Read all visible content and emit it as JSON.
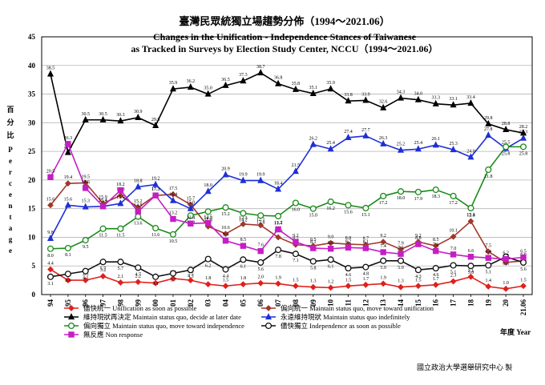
{
  "chart_data": {
    "type": "line",
    "title_zh": "臺灣民眾統獨立場趨勢分佈（1994～2021.06）",
    "title_en_1": "Changes in the Unification - Independence Stances of Taiwanese",
    "title_en_2": "as Tracked in Surveys by Election Study Center, NCCU（1994～2021.06）",
    "ylabel_zh": [
      "百",
      "分",
      "比"
    ],
    "ylabel_en": [
      "P",
      "e",
      "r",
      "c",
      "e",
      "n",
      "t",
      "a",
      "g",
      "e"
    ],
    "xlabel": "年度 Year",
    "credit": "國立政治大學選舉研究中心 製",
    "ylim": [
      0,
      45
    ],
    "yticks": [
      "0",
      "5",
      "10",
      "15",
      "20",
      "25",
      "30",
      "35",
      "40",
      "45"
    ],
    "x_labels": [
      "94",
      "95",
      "96",
      "97",
      "98",
      "99",
      "00",
      "01",
      "02",
      "03",
      "04",
      "05",
      "06",
      "07",
      "08",
      "09",
      "10",
      "11",
      "12",
      "13",
      "14",
      "15",
      "16",
      "17",
      "18",
      "19",
      "20",
      "21.06"
    ],
    "x_positions": [
      1994,
      1995,
      1996,
      1997,
      1998,
      1999,
      2000,
      2001,
      2002,
      2003,
      2004,
      2005,
      2006,
      2007,
      2008,
      2009,
      2010,
      2011,
      2012,
      2013,
      2014,
      2015,
      2016,
      2017,
      2018,
      2019,
      2020,
      2021
    ],
    "legend_position": "bottom",
    "grid": true,
    "series": [
      {
        "name": "儘快統一 Unification as soon as possible",
        "color": "#e0201b",
        "marker": "diamond",
        "values": [
          4.4,
          2.5,
          2.5,
          3.2,
          2.1,
          2.2,
          2.0,
          2.8,
          2.5,
          1.8,
          1.5,
          1.8,
          2.0,
          1.9,
          1.5,
          1.3,
          1.2,
          1.5,
          1.7,
          1.9,
          1.3,
          1.5,
          1.7,
          2.3,
          3.1,
          1.4,
          1.0,
          1.5
        ],
        "labels": [
          "4.4",
          "2.5",
          "2.5",
          "3.2",
          "2.1",
          "2.2",
          "2.0",
          "2.8",
          "2.5",
          "1.8",
          "1.5",
          "1.8",
          "2.0",
          "1.9",
          "1.5",
          "1.3",
          "1.2",
          "1.5",
          "1.7",
          "1.9",
          "1.3",
          "1.5",
          "1.7",
          "2.3",
          "3.1",
          "1.4",
          "1.0",
          "1.5"
        ]
      },
      {
        "name": "偏向統一 Maintain status quo, move toward unification",
        "color": "#a0382c",
        "marker": "diamond",
        "values": [
          15.6,
          19.4,
          19.5,
          15.9,
          17.3,
          15.2,
          17.3,
          17.5,
          15.7,
          11.9,
          10.6,
          12.3,
          12.1,
          10.0,
          8.7,
          8.5,
          9.0,
          8.8,
          8.7,
          9.2,
          7.9,
          9.2,
          8.5,
          10.1,
          12.8,
          7.5,
          5.6,
          5.9
        ],
        "labels": [
          "15.6",
          "19.4",
          "19.5",
          "15.9",
          "17.3",
          "15.2",
          "17.3",
          "17.5",
          "15.7",
          "11.9",
          "10.6",
          "12.3",
          "12.1",
          "10.0",
          "8.7",
          "8.5",
          "9.0",
          "8.8",
          "8.7",
          "9.2",
          "7.9",
          "9.2",
          "8.5",
          "10.1",
          "12.8",
          "7.5",
          "5.6",
          "5.9"
        ]
      },
      {
        "name": "維持現狀再決定 Maintain status quo, decide at later date",
        "color": "#000000",
        "marker": "triangle",
        "values": [
          38.5,
          24.8,
          30.5,
          30.5,
          30.3,
          30.9,
          29.5,
          35.9,
          36.2,
          35.0,
          36.5,
          37.3,
          38.7,
          36.8,
          35.8,
          35.1,
          35.9,
          33.8,
          33.9,
          32.6,
          34.3,
          34.0,
          33.3,
          33.1,
          33.4,
          29.8,
          28.8,
          28.2
        ],
        "labels": [
          "38.5",
          "24.8",
          "30.5",
          "30.5",
          "30.3",
          "30.9",
          "29.5",
          "35.9",
          "36.2",
          "35.0",
          "36.5",
          "37.3",
          "38.7",
          "36.8",
          "35.8",
          "35.1",
          "35.9",
          "33.8",
          "33.9",
          "32.6",
          "34.3",
          "34.0",
          "33.3",
          "33.1",
          "33.4",
          "29.8",
          "28.8",
          "28.2"
        ]
      },
      {
        "name": "永遠維持現狀 Maintain status quo indefinitely",
        "color": "#1f2fd6",
        "marker": "triangle",
        "values": [
          9.8,
          15.6,
          15.3,
          15.4,
          15.9,
          18.8,
          19.2,
          16.4,
          15.0,
          18.0,
          20.9,
          19.9,
          19.9,
          18.4,
          21.5,
          26.2,
          25.4,
          27.4,
          27.7,
          26.3,
          25.2,
          25.4,
          26.1,
          25.3,
          24.0,
          27.8,
          25.5,
          27.3
        ],
        "labels": [
          "9.8",
          "15.6",
          "15.3",
          "15.4",
          "15.9",
          "18.8",
          "19.2",
          "16.4",
          "15.0",
          "18.0",
          "20.9",
          "19.9",
          "19.9",
          "18.4",
          "21.5",
          "26.2",
          "25.4",
          "27.4",
          "27.7",
          "26.3",
          "25.2",
          "25.4",
          "26.1",
          "25.3",
          "24.0",
          "27.8",
          "25.5",
          "27.3"
        ]
      },
      {
        "name": "偏向獨立 Maintain status quo, move toward independence",
        "color": "#1a8a1a",
        "marker": "circle",
        "values": [
          8.0,
          8.1,
          9.5,
          11.5,
          11.5,
          13.6,
          11.6,
          10.5,
          13.8,
          14.5,
          15.2,
          14.2,
          13.8,
          13.7,
          16.0,
          15.0,
          16.2,
          15.6,
          15.1,
          17.2,
          18.0,
          17.9,
          18.3,
          17.2,
          15.1,
          21.8,
          25.8,
          25.8
        ],
        "labels": [
          "8.0",
          "8.1",
          "9.5",
          "11.5",
          "11.5",
          "13.6",
          "11.6",
          "10.5",
          "13.8",
          "14.5",
          "15.2",
          "14.2",
          "13.8",
          "13.7",
          "16.0",
          "15.0",
          "16.2",
          "15.6",
          "15.1",
          "17.2",
          "18.0",
          "17.9",
          "18.3",
          "17.2",
          "15.1",
          "21.8",
          "25.8",
          "25.8"
        ]
      },
      {
        "name": "儘快獨立 Independence as soon as possible",
        "color": "#111111",
        "marker": "circle",
        "values": [
          3.1,
          3.6,
          4.1,
          5.7,
          5.7,
          4.7,
          3.1,
          3.7,
          4.3,
          6.2,
          4.4,
          6.1,
          5.6,
          7.8,
          7.1,
          5.8,
          6.1,
          4.6,
          4.8,
          5.9,
          5.9,
          4.3,
          4.6,
          5.1,
          5.0,
          5.1,
          6.6,
          5.6
        ],
        "labels": [
          "3.1",
          "3.6",
          "4.1",
          "5.7",
          "5.7",
          "4.7",
          "3.1",
          "3.7",
          "4.3",
          "6.2",
          "4.4",
          "6.1",
          "5.6",
          "7.8",
          "7.1",
          "5.8",
          "6.1",
          "4.6",
          "4.8",
          "5.9",
          "5.9",
          "4.3",
          "4.6",
          "5.1",
          "5.0",
          "5.1",
          "6.6",
          "5.6"
        ]
      },
      {
        "name": "無反應 Non response",
        "color": "#c51ec5",
        "marker": "square",
        "values": [
          20.5,
          26.3,
          18.6,
          15.4,
          18.2,
          14.5,
          17.3,
          13.2,
          12.4,
          12.5,
          9.4,
          8.5,
          7.6,
          11.4,
          9.2,
          8.1,
          8.0,
          8.2,
          8.1,
          7.4,
          7.1,
          8.8,
          7.6,
          7.0,
          6.6,
          6.4,
          6.2,
          6.5
        ],
        "labels": [
          "20.5",
          "26.3",
          "18.6",
          "15.4",
          "18.2",
          "14.5",
          "17.3",
          "13.2",
          "12.4",
          "12.5",
          "9.4",
          "8.5",
          "7.6",
          "11.4",
          "9.2",
          "8.1",
          "8.0",
          "8.2",
          "8.1",
          "7.4",
          "7.1",
          "8.8",
          "7.6",
          "7.0",
          "6.6",
          "6.4",
          "6.2",
          "6.5"
        ]
      }
    ]
  }
}
